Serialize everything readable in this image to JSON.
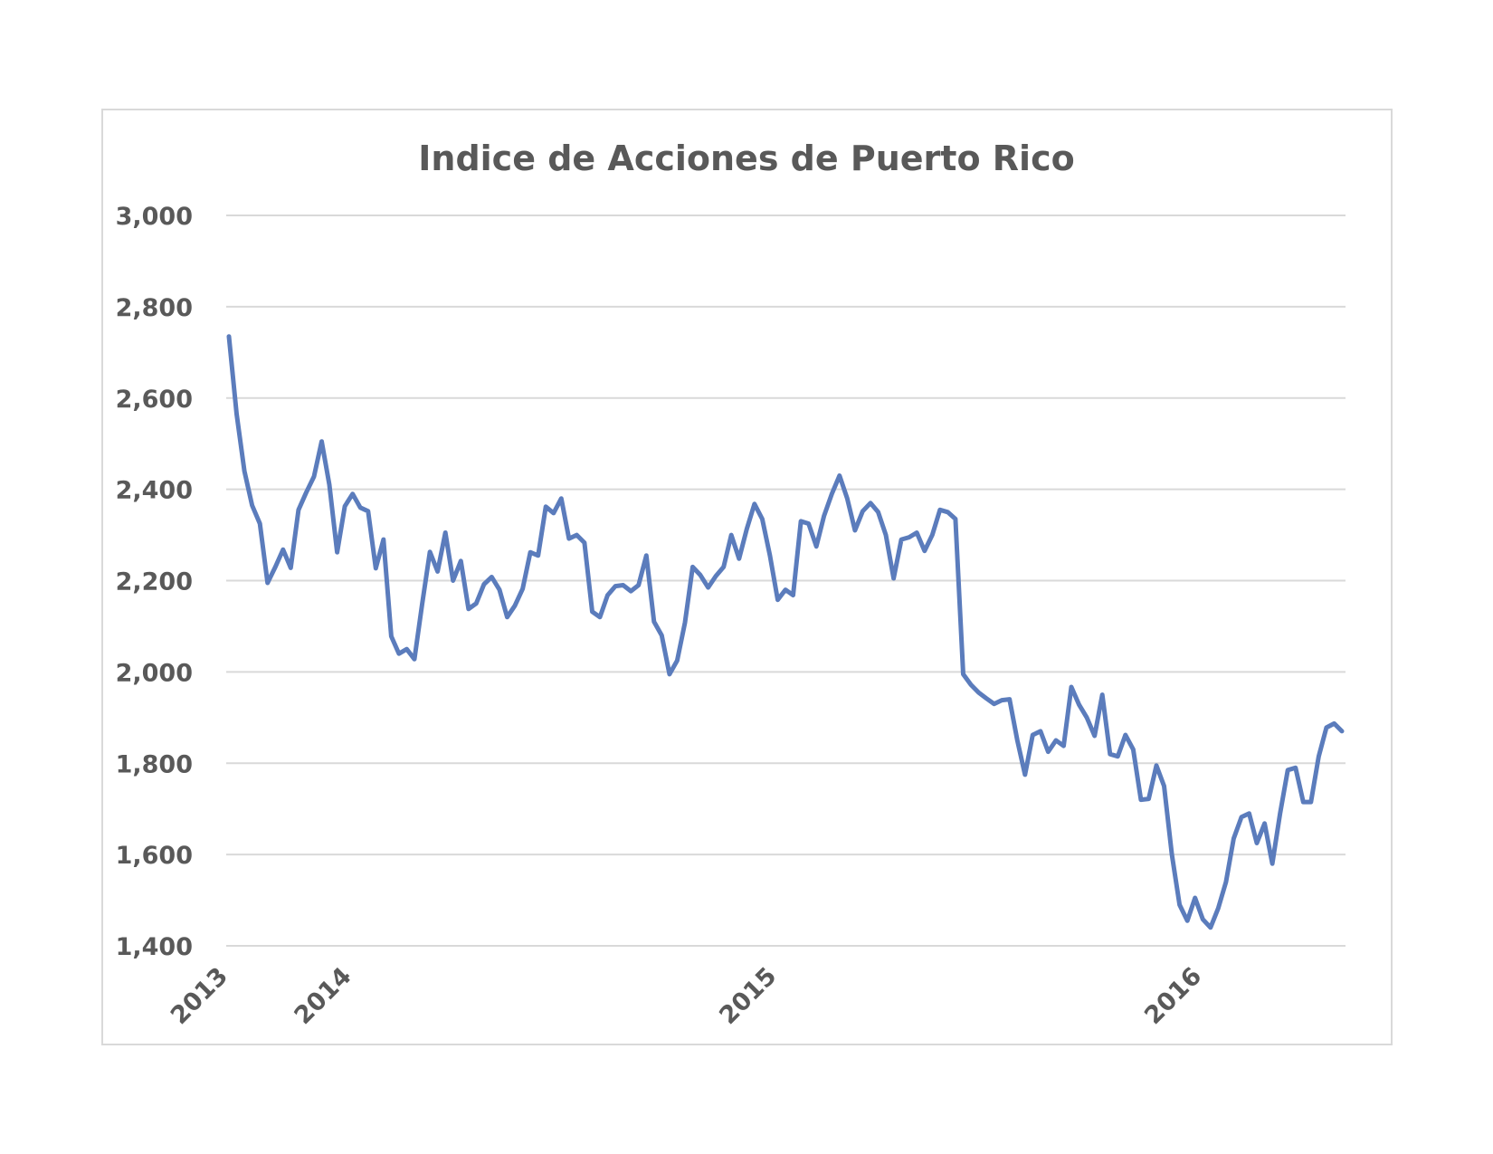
{
  "chart_data": {
    "type": "line",
    "title": "Indice de Acciones de Puerto Rico",
    "xlabel": "",
    "ylabel": "",
    "ylim": [
      1400,
      3000
    ],
    "yticks": [
      1400,
      1600,
      1800,
      2000,
      2200,
      2400,
      2600,
      2800,
      3000
    ],
    "ytick_labels": [
      "1,400",
      "1,600",
      "1,800",
      "2,000",
      "2,200",
      "2,400",
      "2,600",
      "2,800",
      "3,000"
    ],
    "xtick_labels": [
      {
        "label": "2013",
        "index": 0
      },
      {
        "label": "2014",
        "index": 16
      },
      {
        "label": "2015",
        "index": 71
      },
      {
        "label": "2016",
        "index": 126
      }
    ],
    "grid": true,
    "color": "#5b7cbc",
    "series": [
      {
        "values": [
          2735,
          2565,
          2440,
          2365,
          2325,
          2195,
          2230,
          2268,
          2228,
          2355,
          2393,
          2428,
          2505,
          2410,
          2262,
          2363,
          2390,
          2360,
          2352,
          2227,
          2290,
          2078,
          2040,
          2050,
          2028,
          2148,
          2263,
          2220,
          2305,
          2200,
          2243,
          2138,
          2150,
          2192,
          2208,
          2180,
          2120,
          2145,
          2182,
          2262,
          2255,
          2362,
          2348,
          2380,
          2292,
          2300,
          2283,
          2132,
          2120,
          2168,
          2188,
          2190,
          2177,
          2190,
          2255,
          2110,
          2080,
          1995,
          2025,
          2108,
          2230,
          2212,
          2185,
          2210,
          2230,
          2300,
          2248,
          2313,
          2368,
          2335,
          2255,
          2158,
          2180,
          2168,
          2330,
          2325,
          2275,
          2342,
          2390,
          2430,
          2380,
          2310,
          2352,
          2370,
          2350,
          2300,
          2205,
          2290,
          2295,
          2305,
          2265,
          2300,
          2355,
          2350,
          2335,
          1995,
          1972,
          1955,
          1942,
          1930,
          1938,
          1940,
          1850,
          1775,
          1862,
          1870,
          1825,
          1850,
          1838,
          1967,
          1928,
          1900,
          1860,
          1950,
          1820,
          1815,
          1862,
          1830,
          1720,
          1722,
          1795,
          1750,
          1600,
          1490,
          1455,
          1505,
          1458,
          1440,
          1482,
          1540,
          1635,
          1682,
          1690,
          1625,
          1668,
          1580,
          1690,
          1785,
          1790,
          1715,
          1715,
          1815,
          1878,
          1887,
          1870
        ]
      }
    ]
  }
}
